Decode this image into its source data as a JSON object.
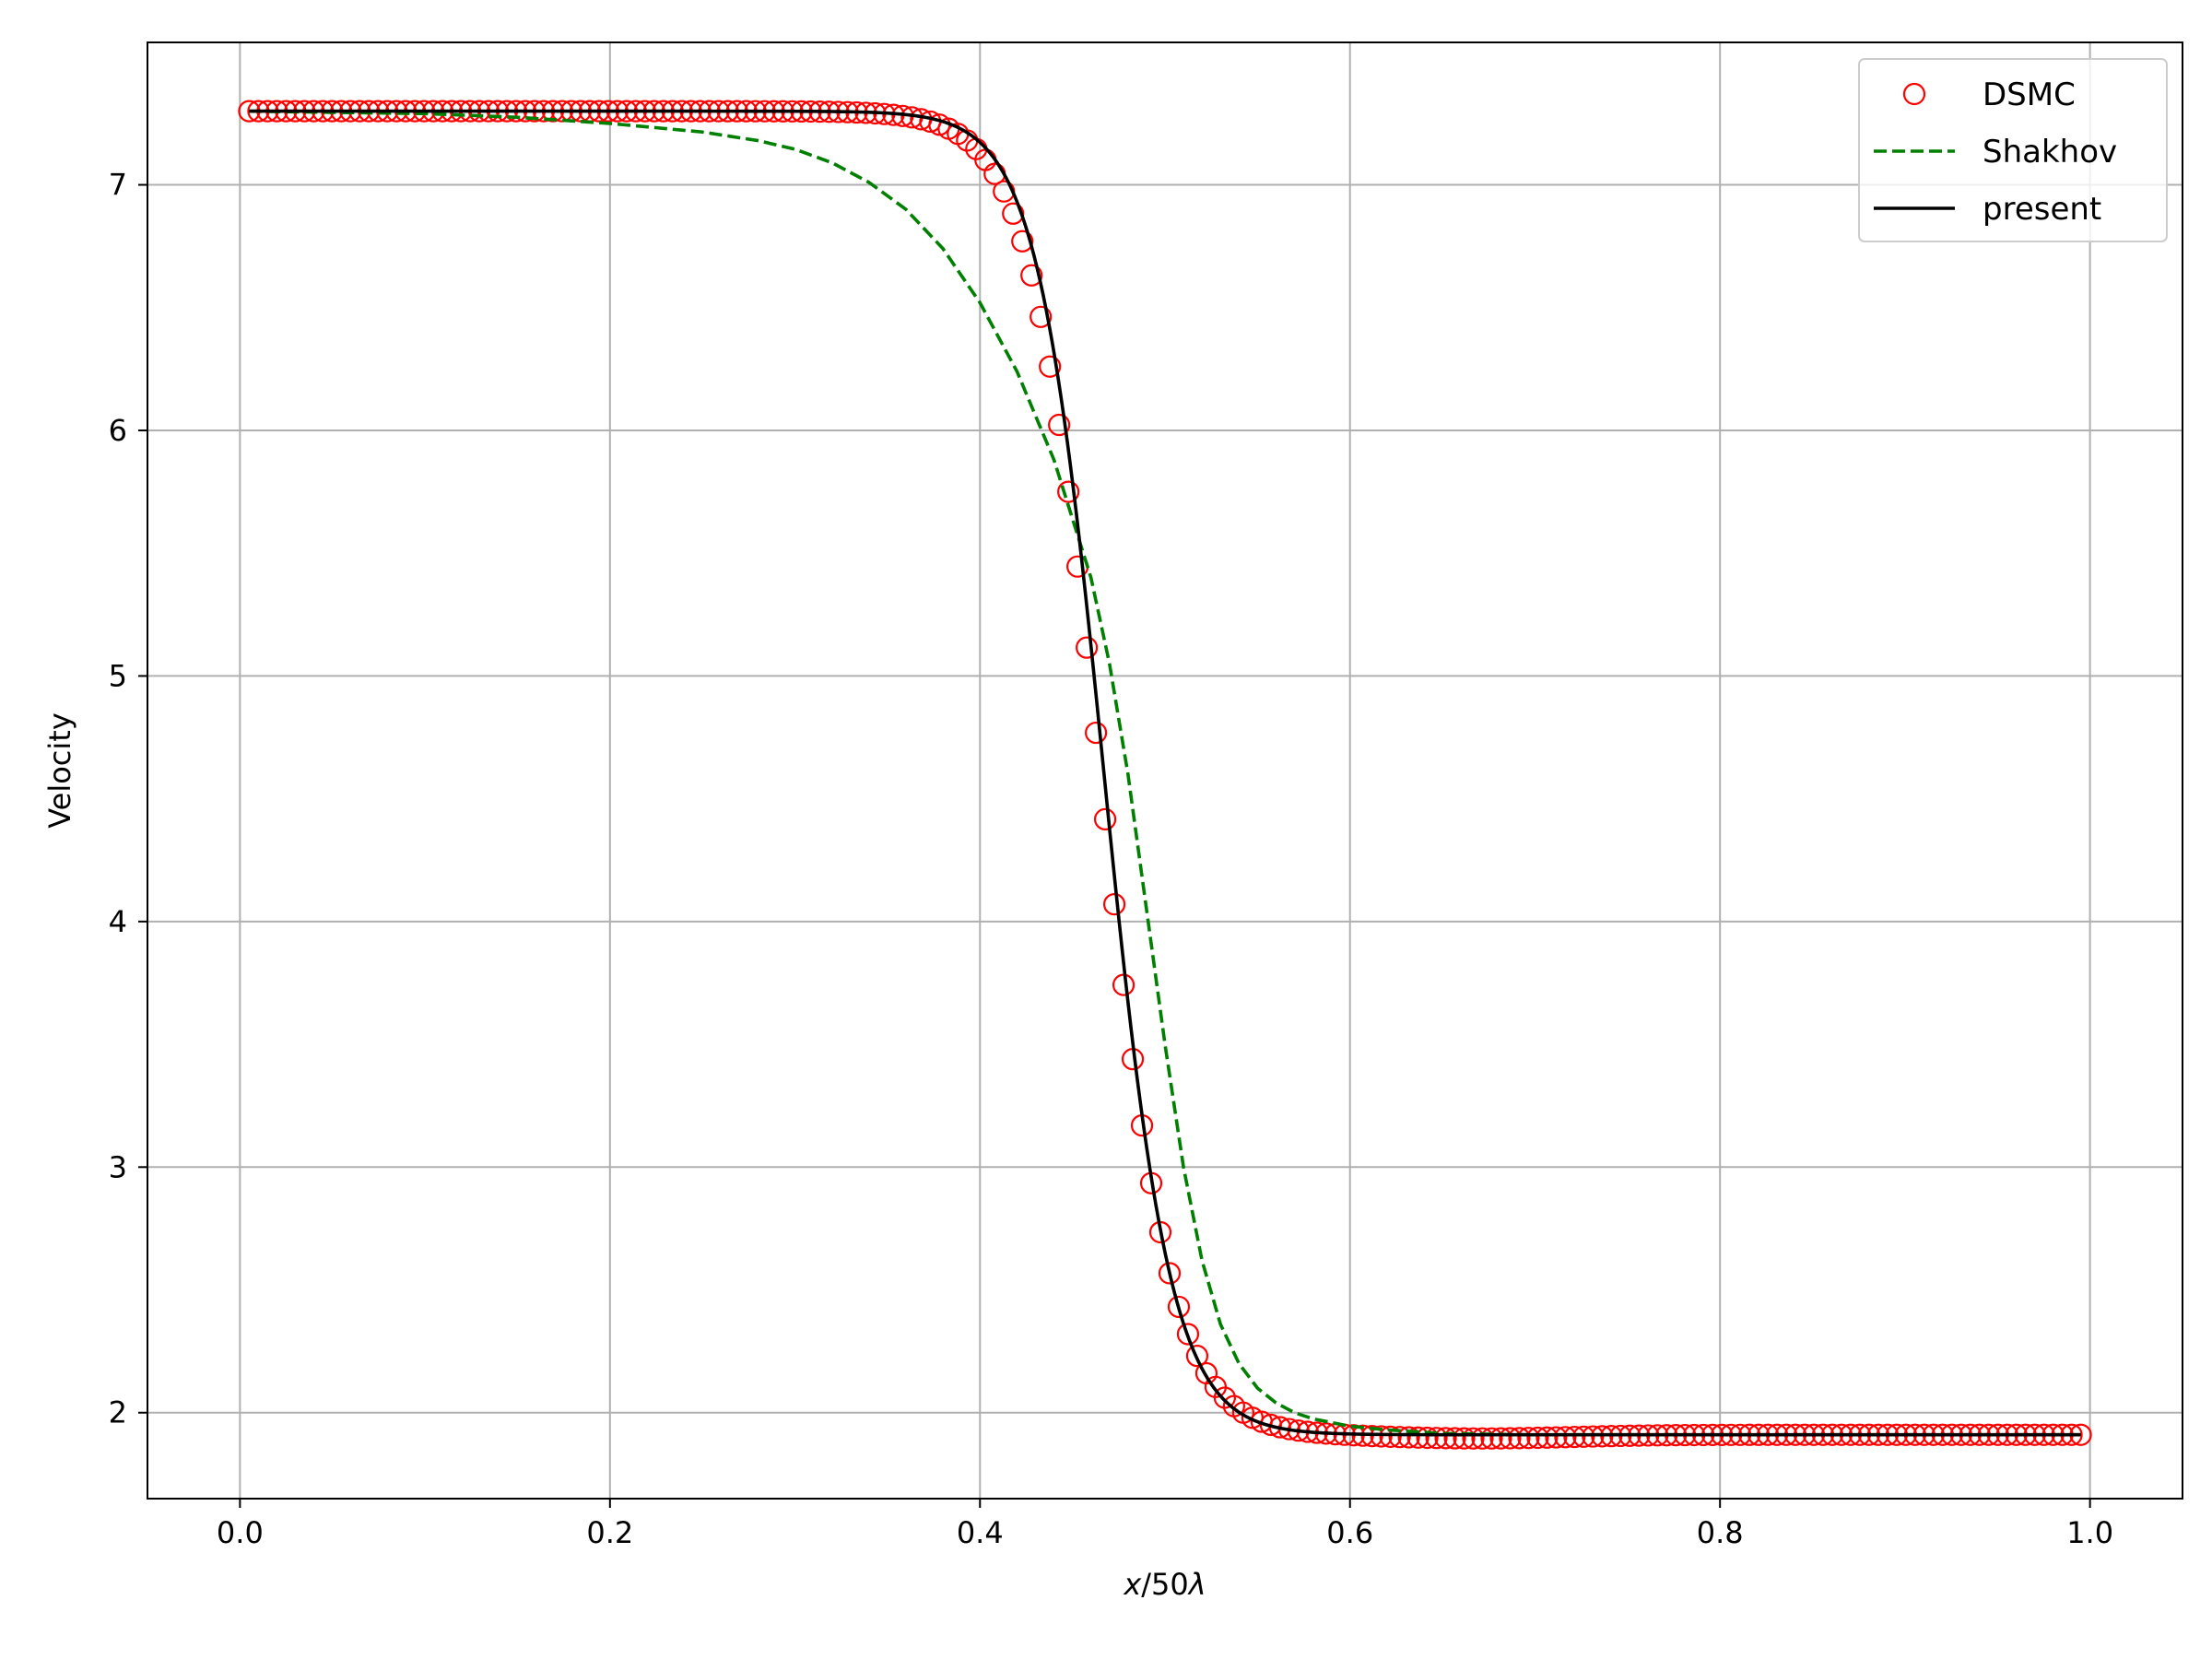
{
  "chart_data": {
    "type": "line",
    "title": "",
    "xlabel_var": "x",
    "xlabel_rest": "/50",
    "xlabel_lambda": "λ",
    "ylabel": "Velocity",
    "xlim": [
      -0.05,
      1.05
    ],
    "ylim": [
      1.65,
      7.58
    ],
    "xticks": [
      0.0,
      0.2,
      0.4,
      0.6,
      0.8,
      1.0
    ],
    "xtick_labels": [
      "0.0",
      "0.2",
      "0.4",
      "0.6",
      "0.8",
      "1.0"
    ],
    "yticks": [
      2,
      3,
      4,
      5,
      6,
      7
    ],
    "ytick_labels": [
      "2",
      "3",
      "4",
      "5",
      "6",
      "7"
    ],
    "grid": true,
    "legend_position": "top-right",
    "series": [
      {
        "name": "DSMC",
        "style": "markers",
        "color": "#ff0000",
        "marker": "open-circle",
        "x_start": 0.005,
        "x_end": 0.995,
        "count": 200,
        "upstream": 7.3,
        "downstream": 1.91,
        "center": 0.465,
        "width": 0.038,
        "dip": 0.015
      },
      {
        "name": "Shakhov",
        "style": "dashed",
        "color": "#008000",
        "x": [
          0.005,
          0.05,
          0.1,
          0.15,
          0.2,
          0.25,
          0.28,
          0.3,
          0.32,
          0.34,
          0.36,
          0.38,
          0.4,
          0.42,
          0.44,
          0.46,
          0.47,
          0.48,
          0.49,
          0.5,
          0.51,
          0.52,
          0.53,
          0.54,
          0.55,
          0.56,
          0.57,
          0.58,
          0.6,
          0.62,
          0.65,
          0.7,
          0.8,
          0.9,
          0.995
        ],
        "y": [
          7.3,
          7.295,
          7.29,
          7.275,
          7.25,
          7.215,
          7.18,
          7.145,
          7.09,
          7.01,
          6.9,
          6.74,
          6.52,
          6.24,
          5.88,
          5.4,
          5.05,
          4.6,
          4.05,
          3.5,
          3.0,
          2.62,
          2.36,
          2.2,
          2.1,
          2.04,
          2.0,
          1.975,
          1.945,
          1.93,
          1.915,
          1.91,
          1.91,
          1.91,
          1.91
        ]
      },
      {
        "name": "present",
        "style": "solid",
        "color": "#000000",
        "upstream": 7.3,
        "downstream": 1.91,
        "center": 0.467,
        "width": 0.036
      }
    ]
  }
}
